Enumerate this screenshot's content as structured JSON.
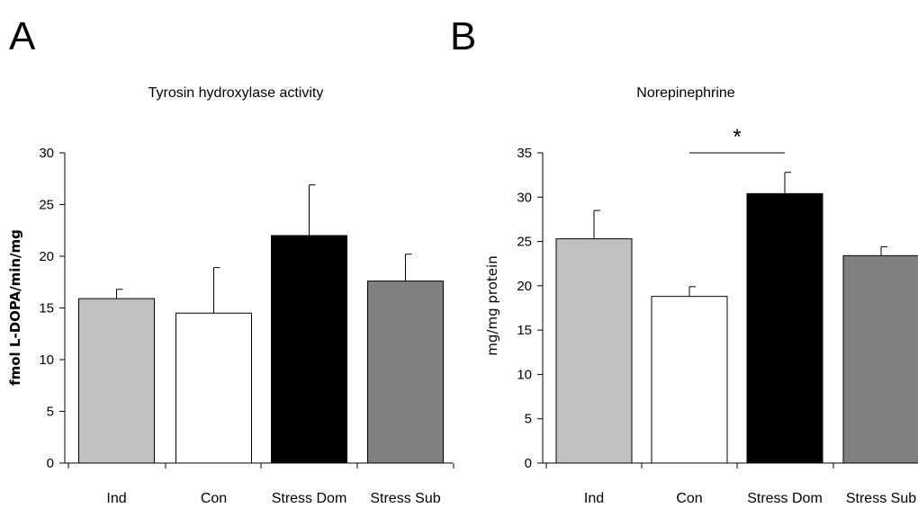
{
  "chart_data": [
    {
      "type": "bar",
      "panel_label": "A",
      "title": "Tyrosin hydroxylase activity",
      "ylabel": "fmol L-DOPA/min/mg",
      "xlabel": "",
      "ylim": [
        0,
        30
      ],
      "yticks": [
        0,
        5,
        10,
        15,
        20,
        25,
        30
      ],
      "categories": [
        "Ind",
        "Con",
        "Stress Dom",
        "Stress Sub"
      ],
      "values": [
        15.9,
        14.5,
        22.0,
        17.6
      ],
      "errors": [
        0.9,
        4.4,
        4.9,
        2.6
      ],
      "colors": [
        "#c0c0c0",
        "#ffffff",
        "#000000",
        "#808080"
      ],
      "grid": false,
      "legend": "none"
    },
    {
      "type": "bar",
      "panel_label": "B",
      "title": "Norepinephrine",
      "ylabel": "mg/mg protein",
      "xlabel": "",
      "ylim": [
        0,
        35
      ],
      "yticks": [
        0,
        5,
        10,
        15,
        20,
        25,
        30,
        35
      ],
      "categories": [
        "Ind",
        "Con",
        "Stress Dom",
        "Stress Sub"
      ],
      "values": [
        25.3,
        18.8,
        30.4,
        23.4
      ],
      "errors": [
        3.2,
        1.1,
        2.4,
        1.0
      ],
      "colors": [
        "#c0c0c0",
        "#ffffff",
        "#000000",
        "#808080"
      ],
      "significance": {
        "from": "Con",
        "to": "Stress Dom",
        "label": "*"
      },
      "grid": false,
      "legend": "none"
    }
  ]
}
